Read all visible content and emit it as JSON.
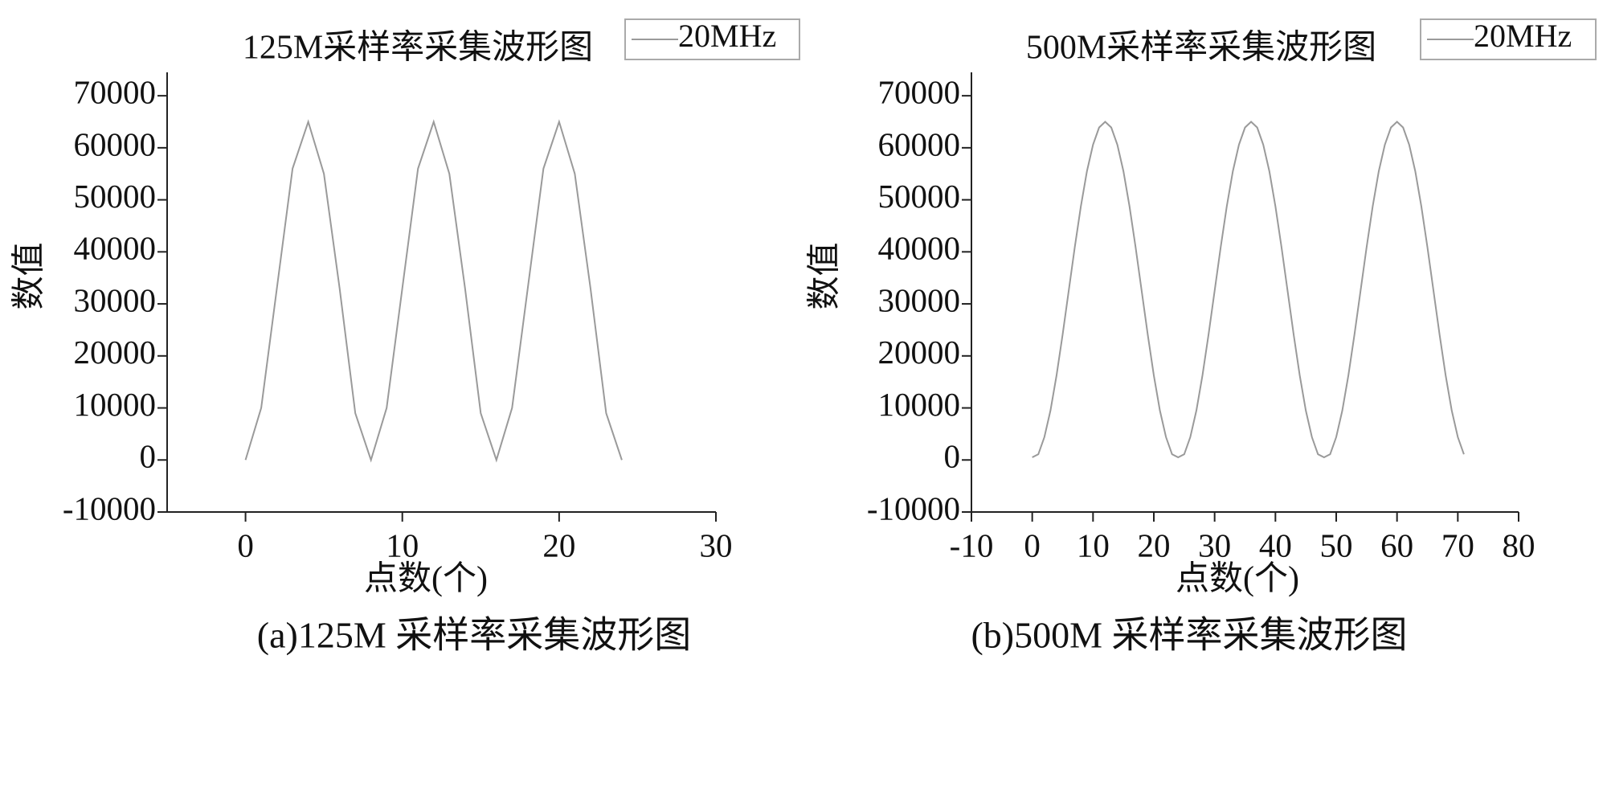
{
  "chart_data": [
    {
      "type": "line",
      "title": "125M采样率采集波形图",
      "x_label": "点数(个)",
      "y_label": "数值",
      "caption": "(a)125M 采样率采集波形图",
      "xlim": [
        -5,
        30
      ],
      "xticks": [
        0,
        10,
        20,
        30
      ],
      "ylim": [
        -10000,
        74500
      ],
      "yticks": [
        -10000,
        0,
        10000,
        20000,
        30000,
        40000,
        50000,
        60000,
        70000
      ],
      "x": [
        0,
        1,
        2,
        3,
        4,
        5,
        6,
        7,
        8,
        9,
        10,
        11,
        12,
        13,
        14,
        15,
        16,
        17,
        18,
        19,
        20,
        21,
        22,
        23,
        24
      ],
      "series": [
        {
          "name": "20MHz",
          "color": "#9a9a9a",
          "values": [
            0,
            10000,
            33000,
            56000,
            65000,
            55000,
            33000,
            9000,
            0,
            10000,
            33000,
            56000,
            65000,
            55000,
            33000,
            9000,
            0,
            10000,
            33000,
            56000,
            65000,
            55000,
            33000,
            9000,
            0
          ]
        }
      ]
    },
    {
      "type": "line",
      "title": "500M采样率采集波形图",
      "x_label": "点数(个)",
      "y_label": "数值",
      "caption": "(b)500M 采样率采集波形图",
      "xlim": [
        -10,
        80
      ],
      "xticks": [
        -10,
        0,
        10,
        20,
        30,
        40,
        50,
        60,
        70,
        80
      ],
      "ylim": [
        -10000,
        74500
      ],
      "yticks": [
        -10000,
        0,
        10000,
        20000,
        30000,
        40000,
        50000,
        60000,
        70000
      ],
      "x": [
        0,
        1,
        2,
        3,
        4,
        5,
        6,
        7,
        8,
        9,
        10,
        11,
        12,
        13,
        14,
        15,
        16,
        17,
        18,
        19,
        20,
        21,
        22,
        23,
        24,
        25,
        26,
        27,
        28,
        29,
        30,
        31,
        32,
        33,
        34,
        35,
        36,
        37,
        38,
        39,
        40,
        41,
        42,
        43,
        44,
        45,
        46,
        47,
        48,
        49,
        50,
        51,
        52,
        53,
        54,
        55,
        56,
        57,
        58,
        59,
        60,
        61,
        62,
        63,
        64,
        65,
        66,
        67,
        68,
        69,
        70,
        71
      ],
      "series": [
        {
          "name": "20MHz",
          "color": "#9a9a9a",
          "values": [
            500,
            1100,
            4400,
            9500,
            16250,
            24100,
            32500,
            40900,
            48750,
            55500,
            60600,
            63900,
            65000,
            63900,
            60600,
            55500,
            48750,
            40900,
            32500,
            24100,
            16250,
            9500,
            4400,
            1100,
            500,
            1100,
            4400,
            9500,
            16250,
            24100,
            32500,
            40900,
            48750,
            55500,
            60600,
            63900,
            65000,
            63900,
            60600,
            55500,
            48750,
            40900,
            32500,
            24100,
            16250,
            9500,
            4400,
            1100,
            500,
            1100,
            4400,
            9500,
            16250,
            24100,
            32500,
            40900,
            48750,
            55500,
            60600,
            63900,
            65000,
            63900,
            60600,
            55500,
            48750,
            40900,
            32500,
            24100,
            16250,
            9500,
            4400,
            1100
          ]
        }
      ]
    }
  ]
}
